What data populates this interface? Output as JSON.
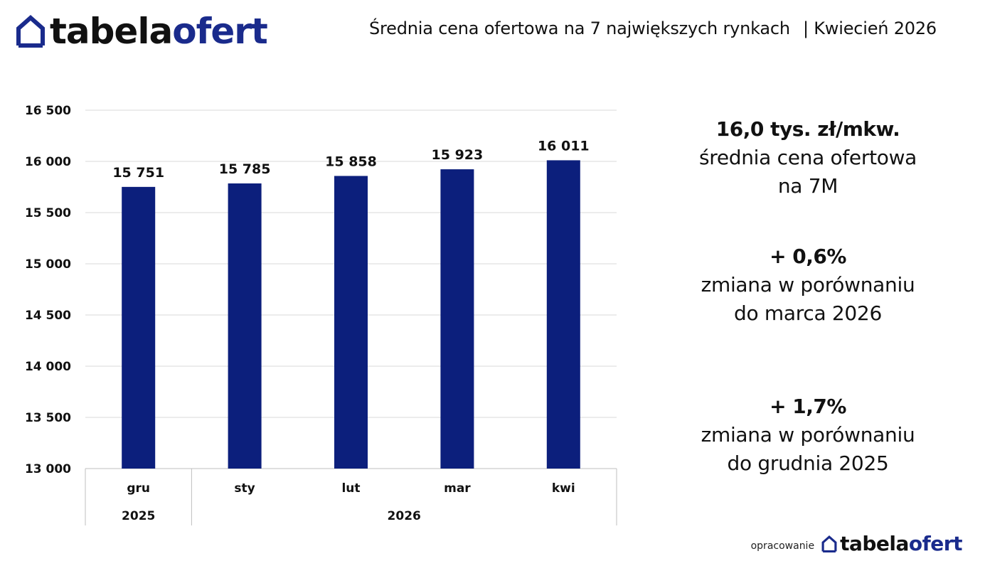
{
  "brand": {
    "part1": "tabela",
    "part2": "ofert",
    "icon": "house-outline-icon",
    "colors": {
      "dark": "#111111",
      "accent": "#1a2b8c"
    }
  },
  "header": {
    "title": "Średnia cena ofertowa na 7 największych rynkach",
    "date": "| Kwiecień  2026"
  },
  "chart_data": {
    "type": "bar",
    "categories": [
      "gru",
      "sty",
      "lut",
      "mar",
      "kwi"
    ],
    "category_groups": [
      {
        "label": "2025",
        "span": 1
      },
      {
        "label": "2026",
        "span": 4
      }
    ],
    "values": [
      15751,
      15785,
      15858,
      15923,
      16011
    ],
    "value_labels": [
      "15 751",
      "15 785",
      "15 858",
      "15 923",
      "16 011"
    ],
    "ylim": [
      13000,
      16500
    ],
    "yticks": [
      13000,
      13500,
      14000,
      14500,
      15000,
      15500,
      16000,
      16500
    ],
    "ytick_labels": [
      "13 000",
      "13 500",
      "14 000",
      "14 500",
      "15 000",
      "15 500",
      "16 000",
      "16 500"
    ],
    "grid": true,
    "bar_color": "#0c1f7c",
    "title": "",
    "xlabel": "",
    "ylabel": ""
  },
  "kpis": [
    {
      "value": "16,0 tys. zł/mkw.",
      "line1": "średnia cena ofertowa",
      "line2": "na 7M"
    },
    {
      "value": "+ 0,6%",
      "line1": "zmiana w porównaniu",
      "line2": "do marca 2026"
    },
    {
      "value": "+ 1,7%",
      "line1": "zmiana w porównaniu",
      "line2": "do grudnia 2025"
    }
  ],
  "footer": {
    "credit": "opracowanie"
  }
}
